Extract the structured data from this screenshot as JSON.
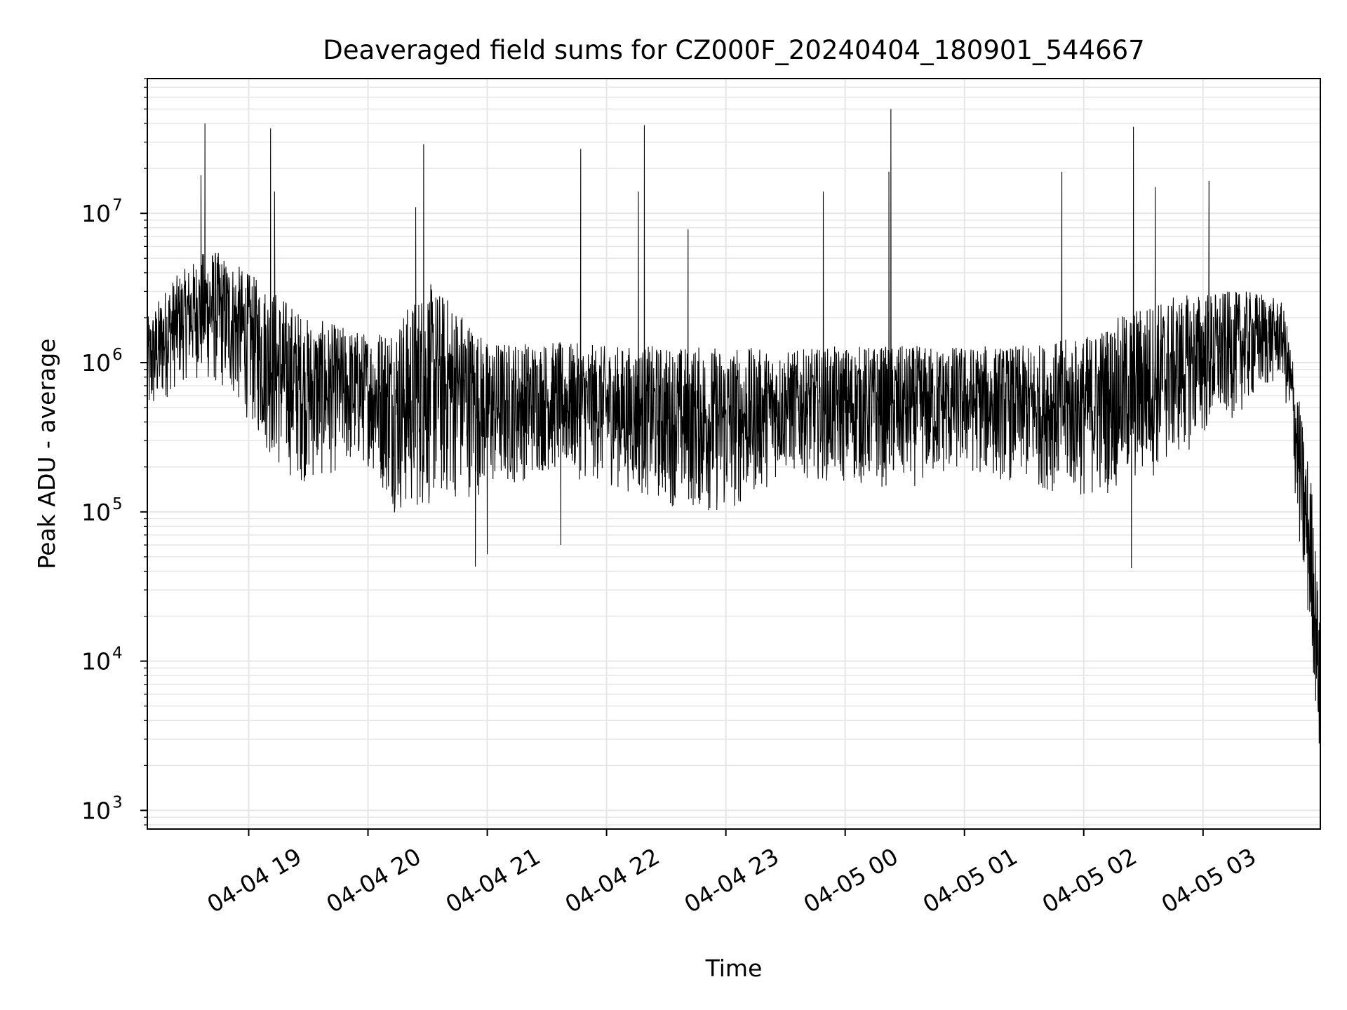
{
  "chart_data": {
    "type": "line",
    "title": "Deaveraged field sums for CZ000F_20240404_180901_544667",
    "xlabel": "Time",
    "ylabel": "Peak ADU - average",
    "yscale": "log",
    "ylim": [
      750,
      80000000
    ],
    "xlim": [
      "2024-04-04 18:09:01",
      "2024-04-05 03:59:00"
    ],
    "grid": true,
    "line_color": "#000000",
    "grid_color": "#e6e6e6",
    "yticks": [
      {
        "base": "10",
        "exp": "3",
        "value": 1000
      },
      {
        "base": "10",
        "exp": "4",
        "value": 10000
      },
      {
        "base": "10",
        "exp": "5",
        "value": 100000
      },
      {
        "base": "10",
        "exp": "6",
        "value": 1000000
      },
      {
        "base": "10",
        "exp": "7",
        "value": 10000000
      }
    ],
    "xticks": [
      {
        "label": "04-04 19",
        "time": "2024-04-04 19:00"
      },
      {
        "label": "04-04 20",
        "time": "2024-04-04 20:00"
      },
      {
        "label": "04-04 21",
        "time": "2024-04-04 21:00"
      },
      {
        "label": "04-04 22",
        "time": "2024-04-04 22:00"
      },
      {
        "label": "04-04 23",
        "time": "2024-04-04 23:00"
      },
      {
        "label": "04-05 00",
        "time": "2024-04-05 00:00"
      },
      {
        "label": "04-05 01",
        "time": "2024-04-05 01:00"
      },
      {
        "label": "04-05 02",
        "time": "2024-04-05 02:00"
      },
      {
        "label": "04-05 03",
        "time": "2024-04-05 03:00"
      }
    ],
    "series": [
      {
        "envelope": [
          {
            "t": "2024-04-04 18:09",
            "low": 350000,
            "high": 2000000
          },
          {
            "t": "2024-04-04 18:20",
            "low": 600000,
            "high": 3500000
          },
          {
            "t": "2024-04-04 18:30",
            "low": 800000,
            "high": 4500000
          },
          {
            "t": "2024-04-04 18:40",
            "low": 700000,
            "high": 6000000
          },
          {
            "t": "2024-04-04 18:50",
            "low": 600000,
            "high": 5000000
          },
          {
            "t": "2024-04-04 19:00",
            "low": 400000,
            "high": 4000000
          },
          {
            "t": "2024-04-04 19:15",
            "low": 180000,
            "high": 3000000
          },
          {
            "t": "2024-04-04 19:30",
            "low": 150000,
            "high": 2000000
          },
          {
            "t": "2024-04-04 19:45",
            "low": 180000,
            "high": 1800000
          },
          {
            "t": "2024-04-04 20:00",
            "low": 200000,
            "high": 1600000
          },
          {
            "t": "2024-04-04 20:15",
            "low": 90000,
            "high": 2000000
          },
          {
            "t": "2024-04-04 20:30",
            "low": 100000,
            "high": 3500000
          },
          {
            "t": "2024-04-04 20:45",
            "low": 120000,
            "high": 2500000
          },
          {
            "t": "2024-04-04 21:00",
            "low": 130000,
            "high": 1400000
          },
          {
            "t": "2024-04-04 21:30",
            "low": 180000,
            "high": 1400000
          },
          {
            "t": "2024-04-04 22:00",
            "low": 150000,
            "high": 1300000
          },
          {
            "t": "2024-04-04 22:30",
            "low": 110000,
            "high": 1300000
          },
          {
            "t": "2024-04-04 23:00",
            "low": 90000,
            "high": 1300000
          },
          {
            "t": "2024-04-04 23:30",
            "low": 180000,
            "high": 1200000
          },
          {
            "t": "2024-04-05 00:00",
            "low": 150000,
            "high": 1300000
          },
          {
            "t": "2024-04-05 00:30",
            "low": 140000,
            "high": 1300000
          },
          {
            "t": "2024-04-05 01:00",
            "low": 180000,
            "high": 1300000
          },
          {
            "t": "2024-04-05 01:30",
            "low": 150000,
            "high": 1300000
          },
          {
            "t": "2024-04-05 02:00",
            "low": 120000,
            "high": 1500000
          },
          {
            "t": "2024-04-05 02:30",
            "low": 150000,
            "high": 2500000
          },
          {
            "t": "2024-04-05 03:00",
            "low": 300000,
            "high": 3000000
          },
          {
            "t": "2024-04-05 03:30",
            "low": 600000,
            "high": 3000000
          },
          {
            "t": "2024-04-05 03:40",
            "low": 800000,
            "high": 2500000
          },
          {
            "t": "2024-04-05 03:45",
            "low": 200000,
            "high": 1200000
          },
          {
            "t": "2024-04-05 03:50",
            "low": 30000,
            "high": 400000
          },
          {
            "t": "2024-04-05 03:55",
            "low": 10000,
            "high": 150000
          },
          {
            "t": "2024-04-05 03:59",
            "low": 1500,
            "high": 15000
          }
        ],
        "spikes": [
          {
            "t": "2024-04-04 18:38",
            "value": 40000000
          },
          {
            "t": "2024-04-04 18:36",
            "value": 18000000
          },
          {
            "t": "2024-04-04 19:11",
            "value": 37000000
          },
          {
            "t": "2024-04-04 19:13",
            "value": 14000000
          },
          {
            "t": "2024-04-04 20:28",
            "value": 29000000
          },
          {
            "t": "2024-04-04 20:24",
            "value": 11000000
          },
          {
            "t": "2024-04-04 20:54",
            "value": 43000
          },
          {
            "t": "2024-04-04 21:00",
            "value": 52000
          },
          {
            "t": "2024-04-04 21:37",
            "value": 60000
          },
          {
            "t": "2024-04-04 21:47",
            "value": 27000000
          },
          {
            "t": "2024-04-04 22:19",
            "value": 39000000
          },
          {
            "t": "2024-04-04 22:16",
            "value": 14000000
          },
          {
            "t": "2024-04-04 22:41",
            "value": 7800000
          },
          {
            "t": "2024-04-04 23:49",
            "value": 14000000
          },
          {
            "t": "2024-04-05 00:23",
            "value": 50000000
          },
          {
            "t": "2024-04-05 00:22",
            "value": 19000000
          },
          {
            "t": "2024-04-05 01:49",
            "value": 19000000
          },
          {
            "t": "2024-04-05 02:25",
            "value": 38000000
          },
          {
            "t": "2024-04-05 02:24",
            "value": 42000
          },
          {
            "t": "2024-04-05 02:36",
            "value": 15000000
          },
          {
            "t": "2024-04-05 03:03",
            "value": 16500000
          }
        ]
      }
    ]
  }
}
